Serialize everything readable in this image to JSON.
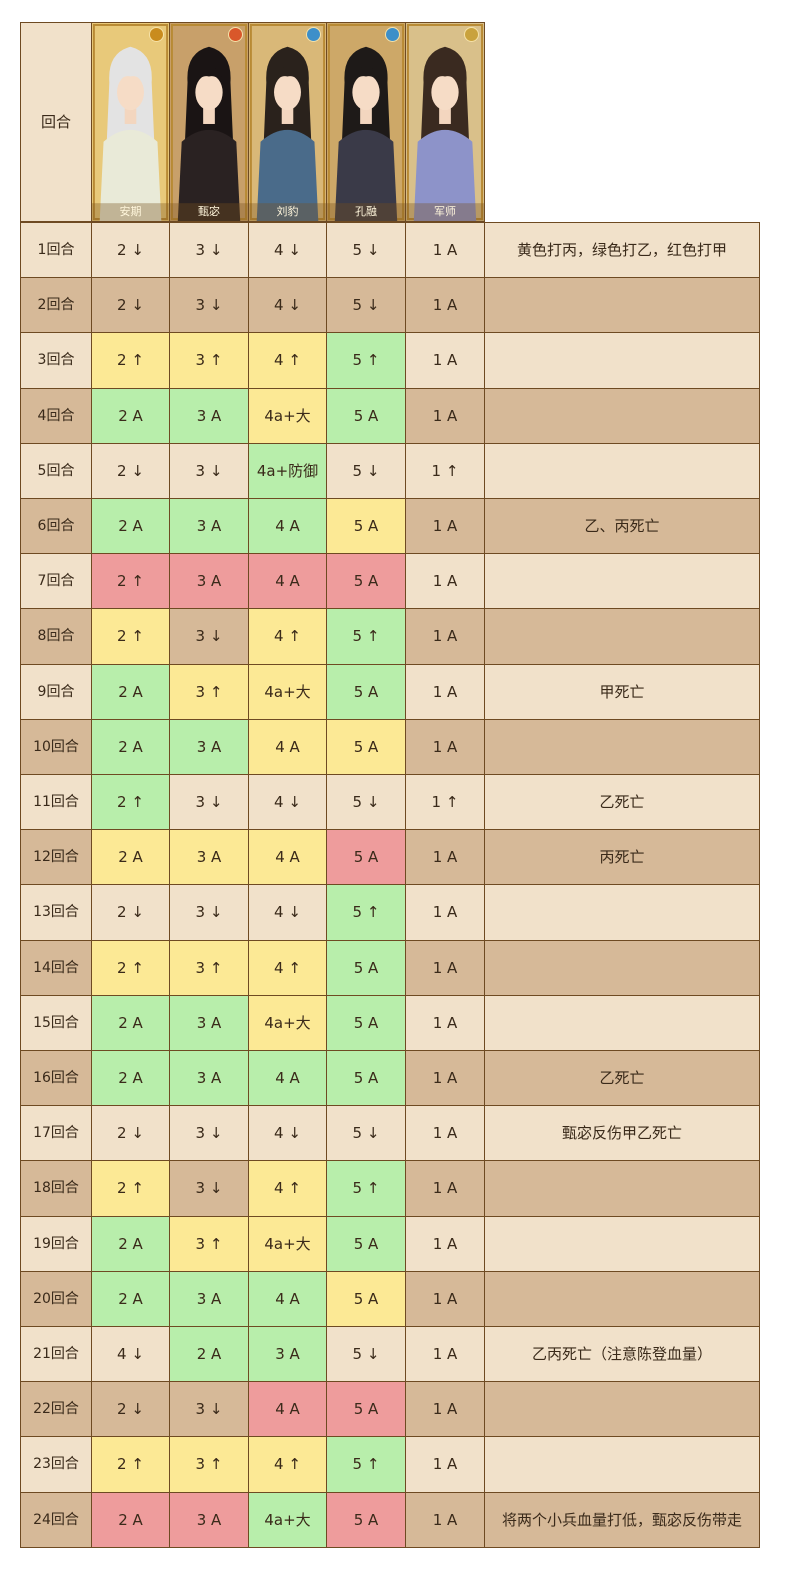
{
  "header": {
    "round_label": "回合",
    "portraits": [
      {
        "name": "安期",
        "element_icon": "sun-icon",
        "icon_color": "#c98c1e",
        "robe": "#e9ead8",
        "hair": "#e3e3e3",
        "bg": "#e8c97a"
      },
      {
        "name": "甄宓",
        "element_icon": "flame-icon",
        "icon_color": "#d9572a",
        "robe": "#2a2222",
        "hair": "#1a1414",
        "bg": "#c8a06a"
      },
      {
        "name": "刘豹",
        "element_icon": "swirl-icon",
        "icon_color": "#3d8fc9",
        "robe": "#4a6b8a",
        "hair": "#2a221c",
        "bg": "#d9b878"
      },
      {
        "name": "孔融",
        "element_icon": "swirl-icon",
        "icon_color": "#3d8fc9",
        "robe": "#3a3a48",
        "hair": "#1e1a18",
        "bg": "#cda868"
      },
      {
        "name": "军师",
        "element_icon": "moon-icon",
        "icon_color": "#c9a23d",
        "robe": "#8d93c9",
        "hair": "#3a2a20",
        "bg": "#d9c08a"
      }
    ]
  },
  "colors": {
    "light": "#f1e1ca",
    "dark": "#d6b998",
    "yellow": "#fce995",
    "green": "#b8eeab",
    "red": "#ee9c9c",
    "border": "#6e4a22"
  },
  "rows": [
    {
      "round": "1回合",
      "cells": [
        [
          "2 ↓",
          "light"
        ],
        [
          "3 ↓",
          "light"
        ],
        [
          "4 ↓",
          "light"
        ],
        [
          "5 ↓",
          "light"
        ],
        [
          "1 A",
          "light"
        ]
      ],
      "note": "黄色打丙，绿色打乙，红色打甲",
      "note_bg": "light"
    },
    {
      "round": "2回合",
      "cells": [
        [
          "2 ↓",
          "dark"
        ],
        [
          "3 ↓",
          "dark"
        ],
        [
          "4 ↓",
          "dark"
        ],
        [
          "5 ↓",
          "dark"
        ],
        [
          "1 A",
          "dark"
        ]
      ],
      "note": "",
      "note_bg": "dark"
    },
    {
      "round": "3回合",
      "cells": [
        [
          "2 ↑",
          "yellow"
        ],
        [
          "3 ↑",
          "yellow"
        ],
        [
          "4 ↑",
          "yellow"
        ],
        [
          "5 ↑",
          "green"
        ],
        [
          "1 A",
          "light"
        ]
      ],
      "note": "",
      "note_bg": "light"
    },
    {
      "round": "4回合",
      "cells": [
        [
          "2 A",
          "green"
        ],
        [
          "3 A",
          "green"
        ],
        [
          "4a+大",
          "yellow"
        ],
        [
          "5 A",
          "green"
        ],
        [
          "1 A",
          "dark"
        ]
      ],
      "note": "",
      "note_bg": "dark"
    },
    {
      "round": "5回合",
      "cells": [
        [
          "2 ↓",
          "light"
        ],
        [
          "3 ↓",
          "light"
        ],
        [
          "4a+防御",
          "green"
        ],
        [
          "5 ↓",
          "light"
        ],
        [
          "1 ↑",
          "light"
        ]
      ],
      "note": "",
      "note_bg": "light"
    },
    {
      "round": "6回合",
      "cells": [
        [
          "2 A",
          "green"
        ],
        [
          "3 A",
          "green"
        ],
        [
          "4 A",
          "green"
        ],
        [
          "5 A",
          "yellow"
        ],
        [
          "1 A",
          "dark"
        ]
      ],
      "note": "乙、丙死亡",
      "note_bg": "dark"
    },
    {
      "round": "7回合",
      "cells": [
        [
          "2 ↑",
          "red"
        ],
        [
          "3 A",
          "red"
        ],
        [
          "4 A",
          "red"
        ],
        [
          "5 A",
          "red"
        ],
        [
          "1 A",
          "light"
        ]
      ],
      "note": "",
      "note_bg": "light"
    },
    {
      "round": "8回合",
      "cells": [
        [
          "2 ↑",
          "yellow"
        ],
        [
          "3 ↓",
          "dark"
        ],
        [
          "4 ↑",
          "yellow"
        ],
        [
          "5 ↑",
          "green"
        ],
        [
          "1 A",
          "dark"
        ]
      ],
      "note": "",
      "note_bg": "dark"
    },
    {
      "round": "9回合",
      "cells": [
        [
          "2 A",
          "green"
        ],
        [
          "3 ↑",
          "yellow"
        ],
        [
          "4a+大",
          "yellow"
        ],
        [
          "5 A",
          "green"
        ],
        [
          "1 A",
          "light"
        ]
      ],
      "note": "甲死亡",
      "note_bg": "light"
    },
    {
      "round": "10回合",
      "cells": [
        [
          "2 A",
          "green"
        ],
        [
          "3 A",
          "green"
        ],
        [
          "4 A",
          "yellow"
        ],
        [
          "5 A",
          "yellow"
        ],
        [
          "1 A",
          "dark"
        ]
      ],
      "note": "",
      "note_bg": "dark"
    },
    {
      "round": "11回合",
      "cells": [
        [
          "2 ↑",
          "green"
        ],
        [
          "3 ↓",
          "light"
        ],
        [
          "4 ↓",
          "light"
        ],
        [
          "5 ↓",
          "light"
        ],
        [
          "1 ↑",
          "light"
        ]
      ],
      "note": "乙死亡",
      "note_bg": "light"
    },
    {
      "round": "12回合",
      "cells": [
        [
          "2 A",
          "yellow"
        ],
        [
          "3 A",
          "yellow"
        ],
        [
          "4 A",
          "yellow"
        ],
        [
          "5 A",
          "red"
        ],
        [
          "1 A",
          "dark"
        ]
      ],
      "note": "丙死亡",
      "note_bg": "dark"
    },
    {
      "round": "13回合",
      "cells": [
        [
          "2 ↓",
          "light"
        ],
        [
          "3 ↓",
          "light"
        ],
        [
          "4 ↓",
          "light"
        ],
        [
          "5 ↑",
          "green"
        ],
        [
          "1 A",
          "light"
        ]
      ],
      "note": "",
      "note_bg": "light"
    },
    {
      "round": "14回合",
      "cells": [
        [
          "2 ↑",
          "yellow"
        ],
        [
          "3 ↑",
          "yellow"
        ],
        [
          "4 ↑",
          "yellow"
        ],
        [
          "5 A",
          "green"
        ],
        [
          "1 A",
          "dark"
        ]
      ],
      "note": "",
      "note_bg": "dark"
    },
    {
      "round": "15回合",
      "cells": [
        [
          "2 A",
          "green"
        ],
        [
          "3 A",
          "green"
        ],
        [
          "4a+大",
          "yellow"
        ],
        [
          "5 A",
          "green"
        ],
        [
          "1 A",
          "light"
        ]
      ],
      "note": "",
      "note_bg": "light"
    },
    {
      "round": "16回合",
      "cells": [
        [
          "2 A",
          "green"
        ],
        [
          "3 A",
          "green"
        ],
        [
          "4 A",
          "green"
        ],
        [
          "5 A",
          "green"
        ],
        [
          "1 A",
          "dark"
        ]
      ],
      "note": "乙死亡",
      "note_bg": "dark"
    },
    {
      "round": "17回合",
      "cells": [
        [
          "2 ↓",
          "light"
        ],
        [
          "3 ↓",
          "light"
        ],
        [
          "4 ↓",
          "light"
        ],
        [
          "5 ↓",
          "light"
        ],
        [
          "1 A",
          "light"
        ]
      ],
      "note": "甄宓反伤甲乙死亡",
      "note_bg": "light"
    },
    {
      "round": "18回合",
      "cells": [
        [
          "2 ↑",
          "yellow"
        ],
        [
          "3 ↓",
          "dark"
        ],
        [
          "4 ↑",
          "yellow"
        ],
        [
          "5 ↑",
          "green"
        ],
        [
          "1 A",
          "dark"
        ]
      ],
      "note": "",
      "note_bg": "dark"
    },
    {
      "round": "19回合",
      "cells": [
        [
          "2 A",
          "green"
        ],
        [
          "3 ↑",
          "yellow"
        ],
        [
          "4a+大",
          "yellow"
        ],
        [
          "5 A",
          "green"
        ],
        [
          "1 A",
          "light"
        ]
      ],
      "note": "",
      "note_bg": "light"
    },
    {
      "round": "20回合",
      "cells": [
        [
          "2 A",
          "green"
        ],
        [
          "3 A",
          "green"
        ],
        [
          "4 A",
          "green"
        ],
        [
          "5 A",
          "yellow"
        ],
        [
          "1 A",
          "dark"
        ]
      ],
      "note": "",
      "note_bg": "dark"
    },
    {
      "round": "21回合",
      "cells": [
        [
          "4 ↓",
          "light"
        ],
        [
          "2 A",
          "green"
        ],
        [
          "3 A",
          "green"
        ],
        [
          "5 ↓",
          "light"
        ],
        [
          "1 A",
          "light"
        ]
      ],
      "note": "乙丙死亡（注意陈登血量）",
      "note_bg": "light"
    },
    {
      "round": "22回合",
      "cells": [
        [
          "2 ↓",
          "dark"
        ],
        [
          "3 ↓",
          "dark"
        ],
        [
          "4 A",
          "red"
        ],
        [
          "5 A",
          "red"
        ],
        [
          "1 A",
          "dark"
        ]
      ],
      "note": "",
      "note_bg": "dark"
    },
    {
      "round": "23回合",
      "cells": [
        [
          "2 ↑",
          "yellow"
        ],
        [
          "3 ↑",
          "yellow"
        ],
        [
          "4 ↑",
          "yellow"
        ],
        [
          "5 ↑",
          "green"
        ],
        [
          "1 A",
          "light"
        ]
      ],
      "note": "",
      "note_bg": "light"
    },
    {
      "round": "24回合",
      "cells": [
        [
          "2 A",
          "red"
        ],
        [
          "3 A",
          "red"
        ],
        [
          "4a+大",
          "green"
        ],
        [
          "5 A",
          "red"
        ],
        [
          "1 A",
          "dark"
        ]
      ],
      "note": "将两个小兵血量打低，甄宓反伤带走",
      "note_bg": "dark"
    }
  ]
}
